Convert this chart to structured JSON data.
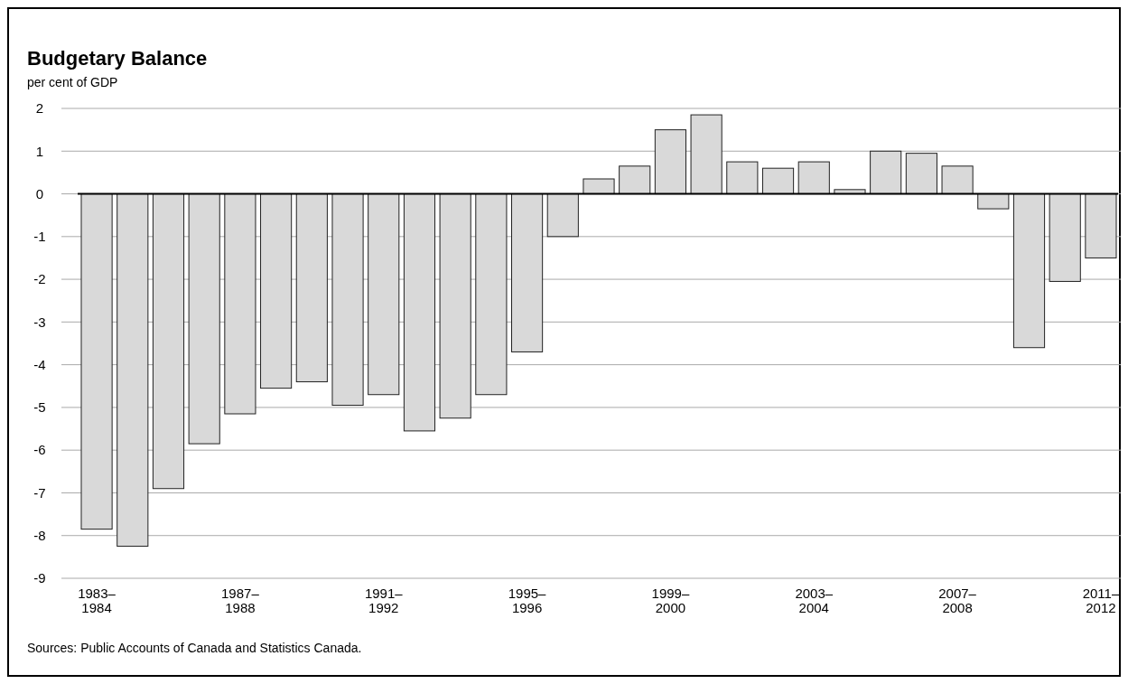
{
  "chart_data": {
    "type": "bar",
    "title": "Budgetary Balance",
    "ylabel": "per cent of GDP",
    "categories": [
      "1983–\n1984",
      null,
      null,
      null,
      "1987–\n1988",
      null,
      null,
      null,
      "1991–\n1992",
      null,
      null,
      null,
      "1995–\n1996",
      null,
      null,
      null,
      "1999–\n2000",
      null,
      null,
      null,
      "2003–\n2004",
      null,
      null,
      null,
      "2007–\n2008",
      null,
      null,
      null,
      "2011–\n2012"
    ],
    "values": [
      -7.85,
      -8.25,
      -6.9,
      -5.85,
      -5.15,
      -4.55,
      -4.4,
      -4.95,
      -4.7,
      -5.55,
      -5.25,
      -4.7,
      -3.7,
      -1.0,
      0.35,
      0.65,
      1.5,
      1.85,
      0.75,
      0.6,
      0.75,
      0.1,
      1.0,
      0.95,
      0.65,
      -0.35,
      -3.6,
      -2.05,
      -1.5
    ],
    "color": "#d9d9d9",
    "ylim": [
      -9,
      2
    ],
    "yticks": [
      -9,
      -8,
      -7,
      -6,
      -5,
      -4,
      -3,
      -2,
      -1,
      0,
      1,
      2
    ],
    "grid": "y",
    "annotations": [
      "Sources: Public Accounts of Canada and Statistics Canada."
    ]
  }
}
